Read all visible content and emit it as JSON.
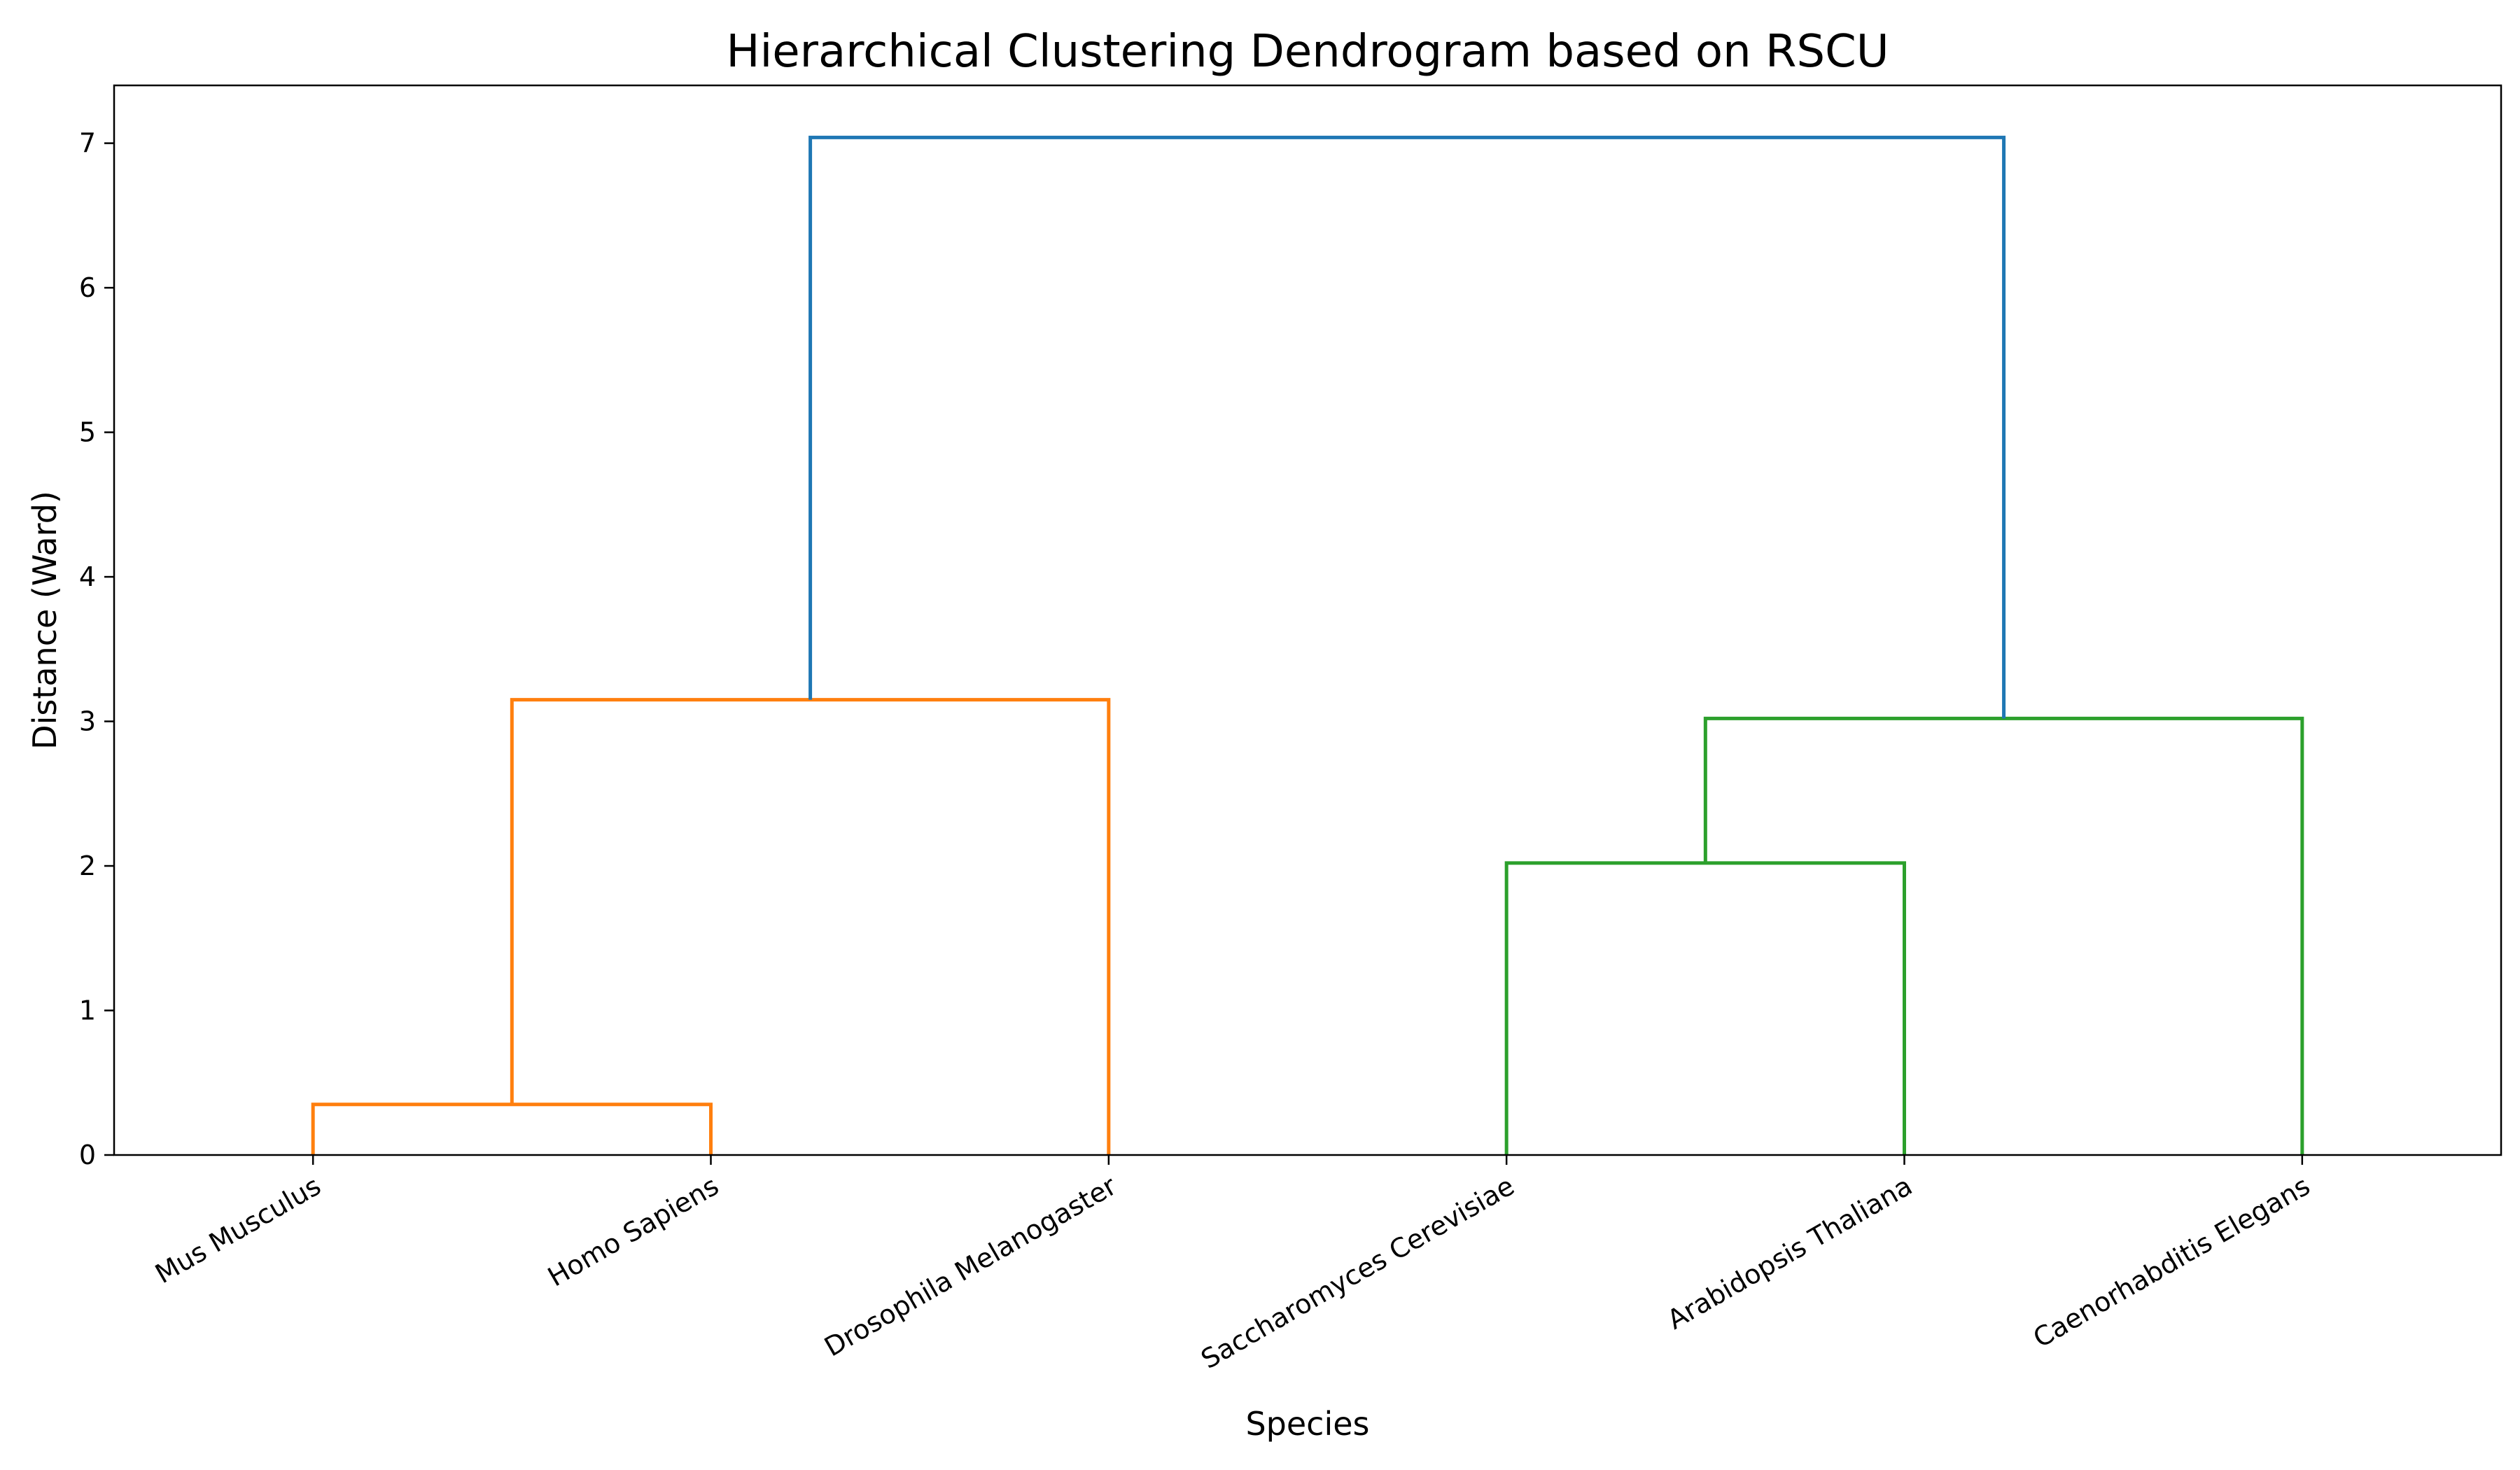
{
  "chart_data": {
    "type": "dendrogram",
    "title": "Hierarchical Clustering Dendrogram based on RSCU",
    "xlabel": "Species",
    "ylabel": "Distance (Ward)",
    "ylim": [
      0,
      7.4
    ],
    "yticks": [
      0,
      1,
      2,
      3,
      4,
      5,
      6,
      7
    ],
    "leaves": [
      "Mus Musculus",
      "Homo Sapiens",
      "Drosophila Melanogaster",
      "Saccharomyces Cerevisiae",
      "Arabidopsis Thaliana",
      "Caenorhabditis Elegans"
    ],
    "merges": [
      {
        "id": "c1",
        "left": "Mus Musculus",
        "right": "Homo Sapiens",
        "distance": 0.35,
        "color": "#ff7f0e"
      },
      {
        "id": "c2",
        "left": "c1",
        "right": "Drosophila Melanogaster",
        "distance": 3.15,
        "color": "#ff7f0e"
      },
      {
        "id": "c3",
        "left": "Saccharomyces Cerevisiae",
        "right": "Arabidopsis Thaliana",
        "distance": 2.02,
        "color": "#2ca02c"
      },
      {
        "id": "c4",
        "left": "c3",
        "right": "Caenorhabditis Elegans",
        "distance": 3.02,
        "color": "#2ca02c"
      },
      {
        "id": "c5",
        "left": "c2",
        "right": "c4",
        "distance": 7.04,
        "color": "#1f77b4"
      }
    ],
    "grid": false,
    "legend": "none"
  }
}
